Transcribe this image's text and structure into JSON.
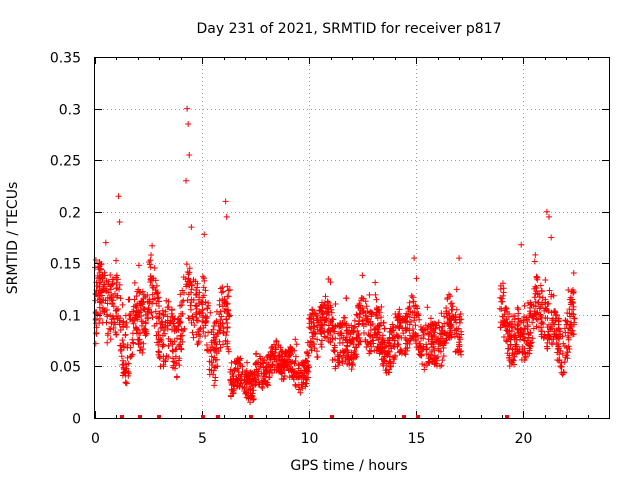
{
  "chart_data": {
    "type": "scatter",
    "title": "Day 231 of 2021, SRMTID for receiver p817",
    "xlabel": "GPS time / hours",
    "ylabel": "SRMTID / TECUs",
    "xlim": [
      0,
      24
    ],
    "ylim": [
      0,
      0.35
    ],
    "xticks": [
      0,
      5,
      10,
      15,
      20
    ],
    "yticks": [
      0,
      0.05,
      0.1,
      0.15,
      0.2,
      0.25,
      0.3,
      0.35
    ],
    "ytick_labels": [
      "0",
      "0.05",
      "0.1",
      "0.15",
      "0.2",
      "0.25",
      "0.3",
      "0.35"
    ],
    "xtick_labels": [
      "0",
      "5",
      "10",
      "15",
      "20"
    ],
    "grid": true,
    "marker": "+",
    "color": "#ff0000",
    "series": [
      {
        "name": "SRMTID",
        "segments": [
          {
            "t0": 0.0,
            "t1": 6.3,
            "base": 0.095,
            "amp": 0.035,
            "spread": 0.03
          },
          {
            "t0": 6.3,
            "t1": 7.5,
            "base": 0.035,
            "amp": 0.01,
            "spread": 0.015
          },
          {
            "t0": 7.5,
            "t1": 10.0,
            "base": 0.05,
            "amp": 0.012,
            "spread": 0.015
          },
          {
            "t0": 10.0,
            "t1": 17.1,
            "base": 0.08,
            "amp": 0.02,
            "spread": 0.022
          },
          {
            "t0": 18.9,
            "t1": 22.4,
            "base": 0.09,
            "amp": 0.025,
            "spread": 0.025
          }
        ],
        "peaks": [
          {
            "x": 0.05,
            "y": 0.12
          },
          {
            "x": 1.1,
            "y": 0.215
          },
          {
            "x": 1.15,
            "y": 0.19
          },
          {
            "x": 4.3,
            "y": 0.3
          },
          {
            "x": 4.35,
            "y": 0.285
          },
          {
            "x": 4.4,
            "y": 0.255
          },
          {
            "x": 4.25,
            "y": 0.23
          },
          {
            "x": 4.5,
            "y": 0.185
          },
          {
            "x": 6.1,
            "y": 0.21
          },
          {
            "x": 6.15,
            "y": 0.195
          },
          {
            "x": 5.1,
            "y": 0.178
          },
          {
            "x": 14.9,
            "y": 0.155
          },
          {
            "x": 17.0,
            "y": 0.155
          },
          {
            "x": 19.9,
            "y": 0.168
          },
          {
            "x": 21.1,
            "y": 0.2
          },
          {
            "x": 21.2,
            "y": 0.195
          },
          {
            "x": 21.3,
            "y": 0.175
          }
        ]
      }
    ],
    "zero_markers": [
      1.25,
      2.1,
      3.0,
      5.05,
      5.75,
      7.3,
      11.05,
      14.45,
      15.1,
      19.25
    ]
  }
}
